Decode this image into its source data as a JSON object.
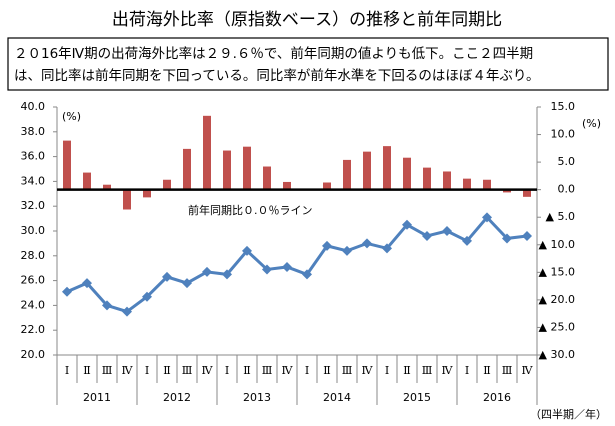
{
  "chart_data": {
    "type": "combo",
    "title": "出荷海外比率（原指数ベース）の推移と前年同期比",
    "note": [
      "２０16年Ⅳ期の出荷海外比率は２９.６％で、前年同期の値よりも低下。ここ２四半期",
      "は、同比率は前年同期を下回っている。同比率が前年水準を下回るのはほぼ４年ぶり。"
    ],
    "ylabel": "(%)",
    "y2label": "(%)",
    "annotation": "前年同期比０.０％ライン",
    "xlabel": "（四半期／年）",
    "categories": [
      "Ⅰ",
      "Ⅱ",
      "Ⅲ",
      "Ⅳ",
      "Ⅰ",
      "Ⅱ",
      "Ⅲ",
      "Ⅳ",
      "Ⅰ",
      "Ⅱ",
      "Ⅲ",
      "Ⅳ",
      "Ⅰ",
      "Ⅱ",
      "Ⅲ",
      "Ⅳ",
      "Ⅰ",
      "Ⅱ",
      "Ⅲ",
      "Ⅳ",
      "Ⅰ",
      "Ⅱ",
      "Ⅲ",
      "Ⅳ"
    ],
    "groups": [
      "2011",
      "2012",
      "2013",
      "2014",
      "2015",
      "2016"
    ],
    "series": [
      {
        "type": "bar",
        "axis": "y2",
        "color": "#c0504d",
        "values": [
          8.9,
          3.1,
          0.9,
          -3.6,
          -1.4,
          1.8,
          7.4,
          13.4,
          7.1,
          7.8,
          4.2,
          1.4,
          0.0,
          1.3,
          5.4,
          6.9,
          7.9,
          5.8,
          4.0,
          3.3,
          2.0,
          1.8,
          -0.5,
          -1.3
        ]
      },
      {
        "type": "line",
        "axis": "y",
        "color": "#4f81bd",
        "values": [
          25.1,
          25.8,
          24.0,
          23.5,
          24.7,
          26.3,
          25.8,
          26.7,
          26.5,
          28.4,
          26.9,
          27.1,
          26.5,
          28.8,
          28.4,
          29.0,
          28.6,
          30.5,
          29.6,
          30.0,
          29.2,
          31.1,
          29.4,
          29.6
        ]
      }
    ],
    "ylim": [
      20,
      40
    ],
    "yticks": [
      {
        "value": 20,
        "label": "20.0"
      },
      {
        "value": 22,
        "label": "22.0"
      },
      {
        "value": 24,
        "label": "24.0"
      },
      {
        "value": 26,
        "label": "26.0"
      },
      {
        "value": 28,
        "label": "28.0"
      },
      {
        "value": 30,
        "label": "30.0"
      },
      {
        "value": 32,
        "label": "32.0"
      },
      {
        "value": 34,
        "label": "34.0"
      },
      {
        "value": 36,
        "label": "36.0"
      },
      {
        "value": 38,
        "label": "38.0"
      },
      {
        "value": 40,
        "label": "40.0"
      }
    ],
    "y2lim": [
      -30,
      15
    ],
    "y2ticks": [
      {
        "value": 15,
        "label": "15.0"
      },
      {
        "value": 10,
        "label": "10.0"
      },
      {
        "value": 5,
        "label": "5.0"
      },
      {
        "value": 0,
        "label": "0.0"
      },
      {
        "value": -5,
        "label": "▲ 5.0"
      },
      {
        "value": -10,
        "label": "▲ 10.0"
      },
      {
        "value": -15,
        "label": "▲ 15.0"
      },
      {
        "value": -20,
        "label": "▲ 20.0"
      },
      {
        "value": -25,
        "label": "▲ 25.0"
      },
      {
        "value": -30,
        "label": "▲ 30.0"
      }
    ]
  }
}
